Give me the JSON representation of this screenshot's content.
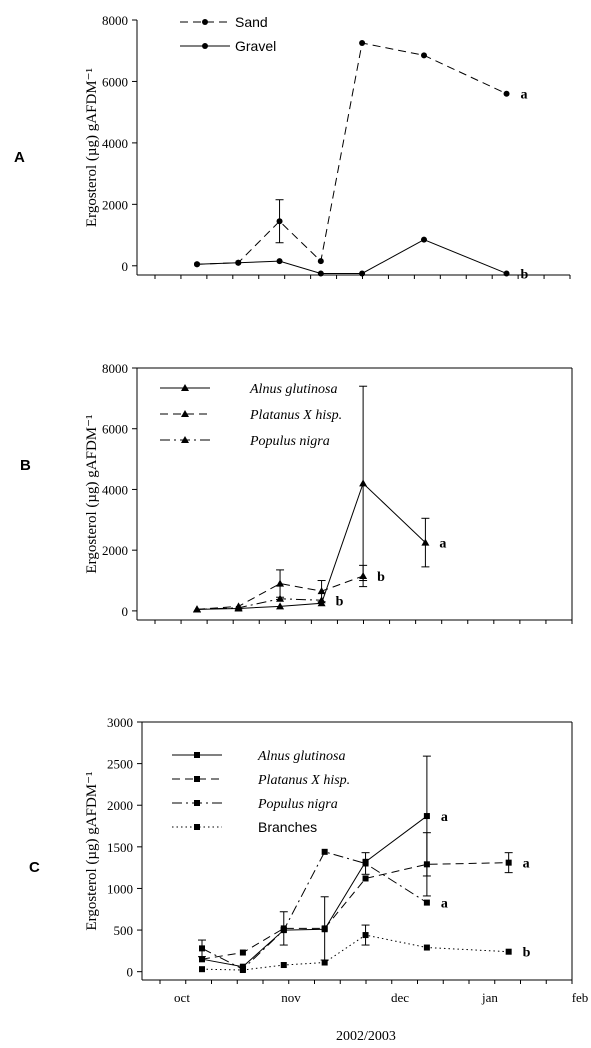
{
  "chart_data": [
    {
      "panel": "A",
      "type": "line",
      "ylabel": "Ergosterol (µg) gAFDM⁻¹",
      "ylim": [
        -300,
        8000
      ],
      "yticks": [
        0,
        2000,
        4000,
        6000,
        8000
      ],
      "xlim": [
        0,
        126
      ],
      "legend": "top-left",
      "series": [
        {
          "name": "Sand",
          "dash": "dashed",
          "x": [
            0,
            14,
            28,
            42,
            56,
            77,
            105
          ],
          "y": [
            50,
            100,
            1450,
            150,
            7250,
            6850,
            5600
          ],
          "err": [
            0,
            0,
            700,
            0,
            0,
            0,
            0
          ],
          "label": "a"
        },
        {
          "name": "Gravel",
          "dash": "solid",
          "x": [
            0,
            14,
            28,
            42,
            56,
            77,
            105
          ],
          "y": [
            50,
            100,
            150,
            -250,
            -250,
            850,
            -250
          ],
          "err": [
            0,
            0,
            0,
            0,
            0,
            0,
            0
          ],
          "label": "b"
        }
      ]
    },
    {
      "panel": "B",
      "type": "line",
      "ylabel": "Ergosterol (µg) gAFDM⁻¹",
      "ylim": [
        -300,
        8000
      ],
      "yticks": [
        0,
        2000,
        4000,
        6000,
        8000
      ],
      "xlim": [
        0,
        126
      ],
      "legend": "top-left",
      "series": [
        {
          "name": "Alnus glutinosa",
          "dash": "solid",
          "x": [
            0,
            14,
            28,
            42,
            56,
            77
          ],
          "y": [
            50,
            80,
            150,
            250,
            4200,
            2250
          ],
          "err": [
            0,
            0,
            0,
            0,
            3200,
            800
          ],
          "label": "a"
        },
        {
          "name": "Platanus X hisp.",
          "dash": "dashed",
          "x": [
            0,
            14,
            28,
            42,
            56
          ],
          "y": [
            50,
            150,
            900,
            650,
            1150
          ],
          "err": [
            0,
            0,
            450,
            350,
            350
          ],
          "label": "b"
        },
        {
          "name": "Populus nigra",
          "dash": "dashdot",
          "x": [
            0,
            14,
            28,
            42
          ],
          "y": [
            50,
            100,
            400,
            350
          ],
          "err": [
            0,
            0,
            0,
            0
          ],
          "label": "b"
        }
      ]
    },
    {
      "panel": "C",
      "type": "line",
      "ylabel": "Ergosterol (µg) gAFDM⁻¹",
      "ylim": [
        -100,
        3000
      ],
      "yticks": [
        0,
        500,
        1000,
        1500,
        2000,
        2500,
        3000
      ],
      "xlim": [
        0,
        126
      ],
      "xticks": [
        "oct",
        "nov",
        "dec",
        "jan",
        "feb"
      ],
      "xlabel": "2002/2003",
      "legend": "top-left",
      "series": [
        {
          "name": "Alnus glutinosa",
          "dash": "solid",
          "x": [
            0,
            14,
            28,
            42,
            56,
            77
          ],
          "y": [
            150,
            60,
            500,
            510,
            1320,
            1870
          ],
          "err": [
            0,
            0,
            0,
            0,
            0,
            720
          ],
          "label": "a"
        },
        {
          "name": "Platanus X hisp.",
          "dash": "dashed",
          "x": [
            0,
            14,
            28,
            42,
            56,
            77,
            105
          ],
          "y": [
            150,
            230,
            520,
            520,
            1120,
            1290,
            1310
          ],
          "err": [
            0,
            0,
            200,
            380,
            0,
            380,
            120
          ],
          "label": "a"
        },
        {
          "name": "Populus nigra",
          "dash": "dashdot",
          "x": [
            0,
            14,
            28,
            42,
            56,
            77
          ],
          "y": [
            280,
            30,
            500,
            1440,
            1300,
            830
          ],
          "err": [
            100,
            0,
            0,
            0,
            130,
            0
          ],
          "label": "a"
        },
        {
          "name": "Branches",
          "dash": "dotted",
          "x": [
            0,
            14,
            28,
            42,
            56,
            77,
            105
          ],
          "y": [
            30,
            20,
            80,
            110,
            440,
            290,
            240
          ],
          "err": [
            0,
            0,
            0,
            0,
            120,
            0,
            0
          ],
          "label": "b"
        }
      ]
    }
  ]
}
